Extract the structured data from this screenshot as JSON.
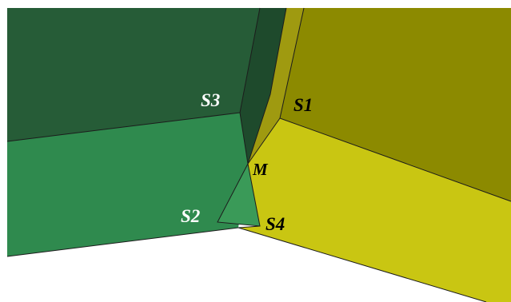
{
  "labels": {
    "s1": "S1",
    "s2": "S2",
    "s3": "S3",
    "s4": "S4",
    "m": "M"
  },
  "colors": {
    "background": "#ffffff",
    "face_dark_green": "#265c37",
    "face_dark_green_side": "#1e4a2c",
    "face_mid_green": "#2f8a4e",
    "face_olive": "#8c8a00",
    "face_olive_side": "#9f9a10",
    "face_yellow": "#c9c612",
    "face_triangle_green": "#3a9a58",
    "label_light": "#ffffff",
    "label_dark": "#000000"
  }
}
